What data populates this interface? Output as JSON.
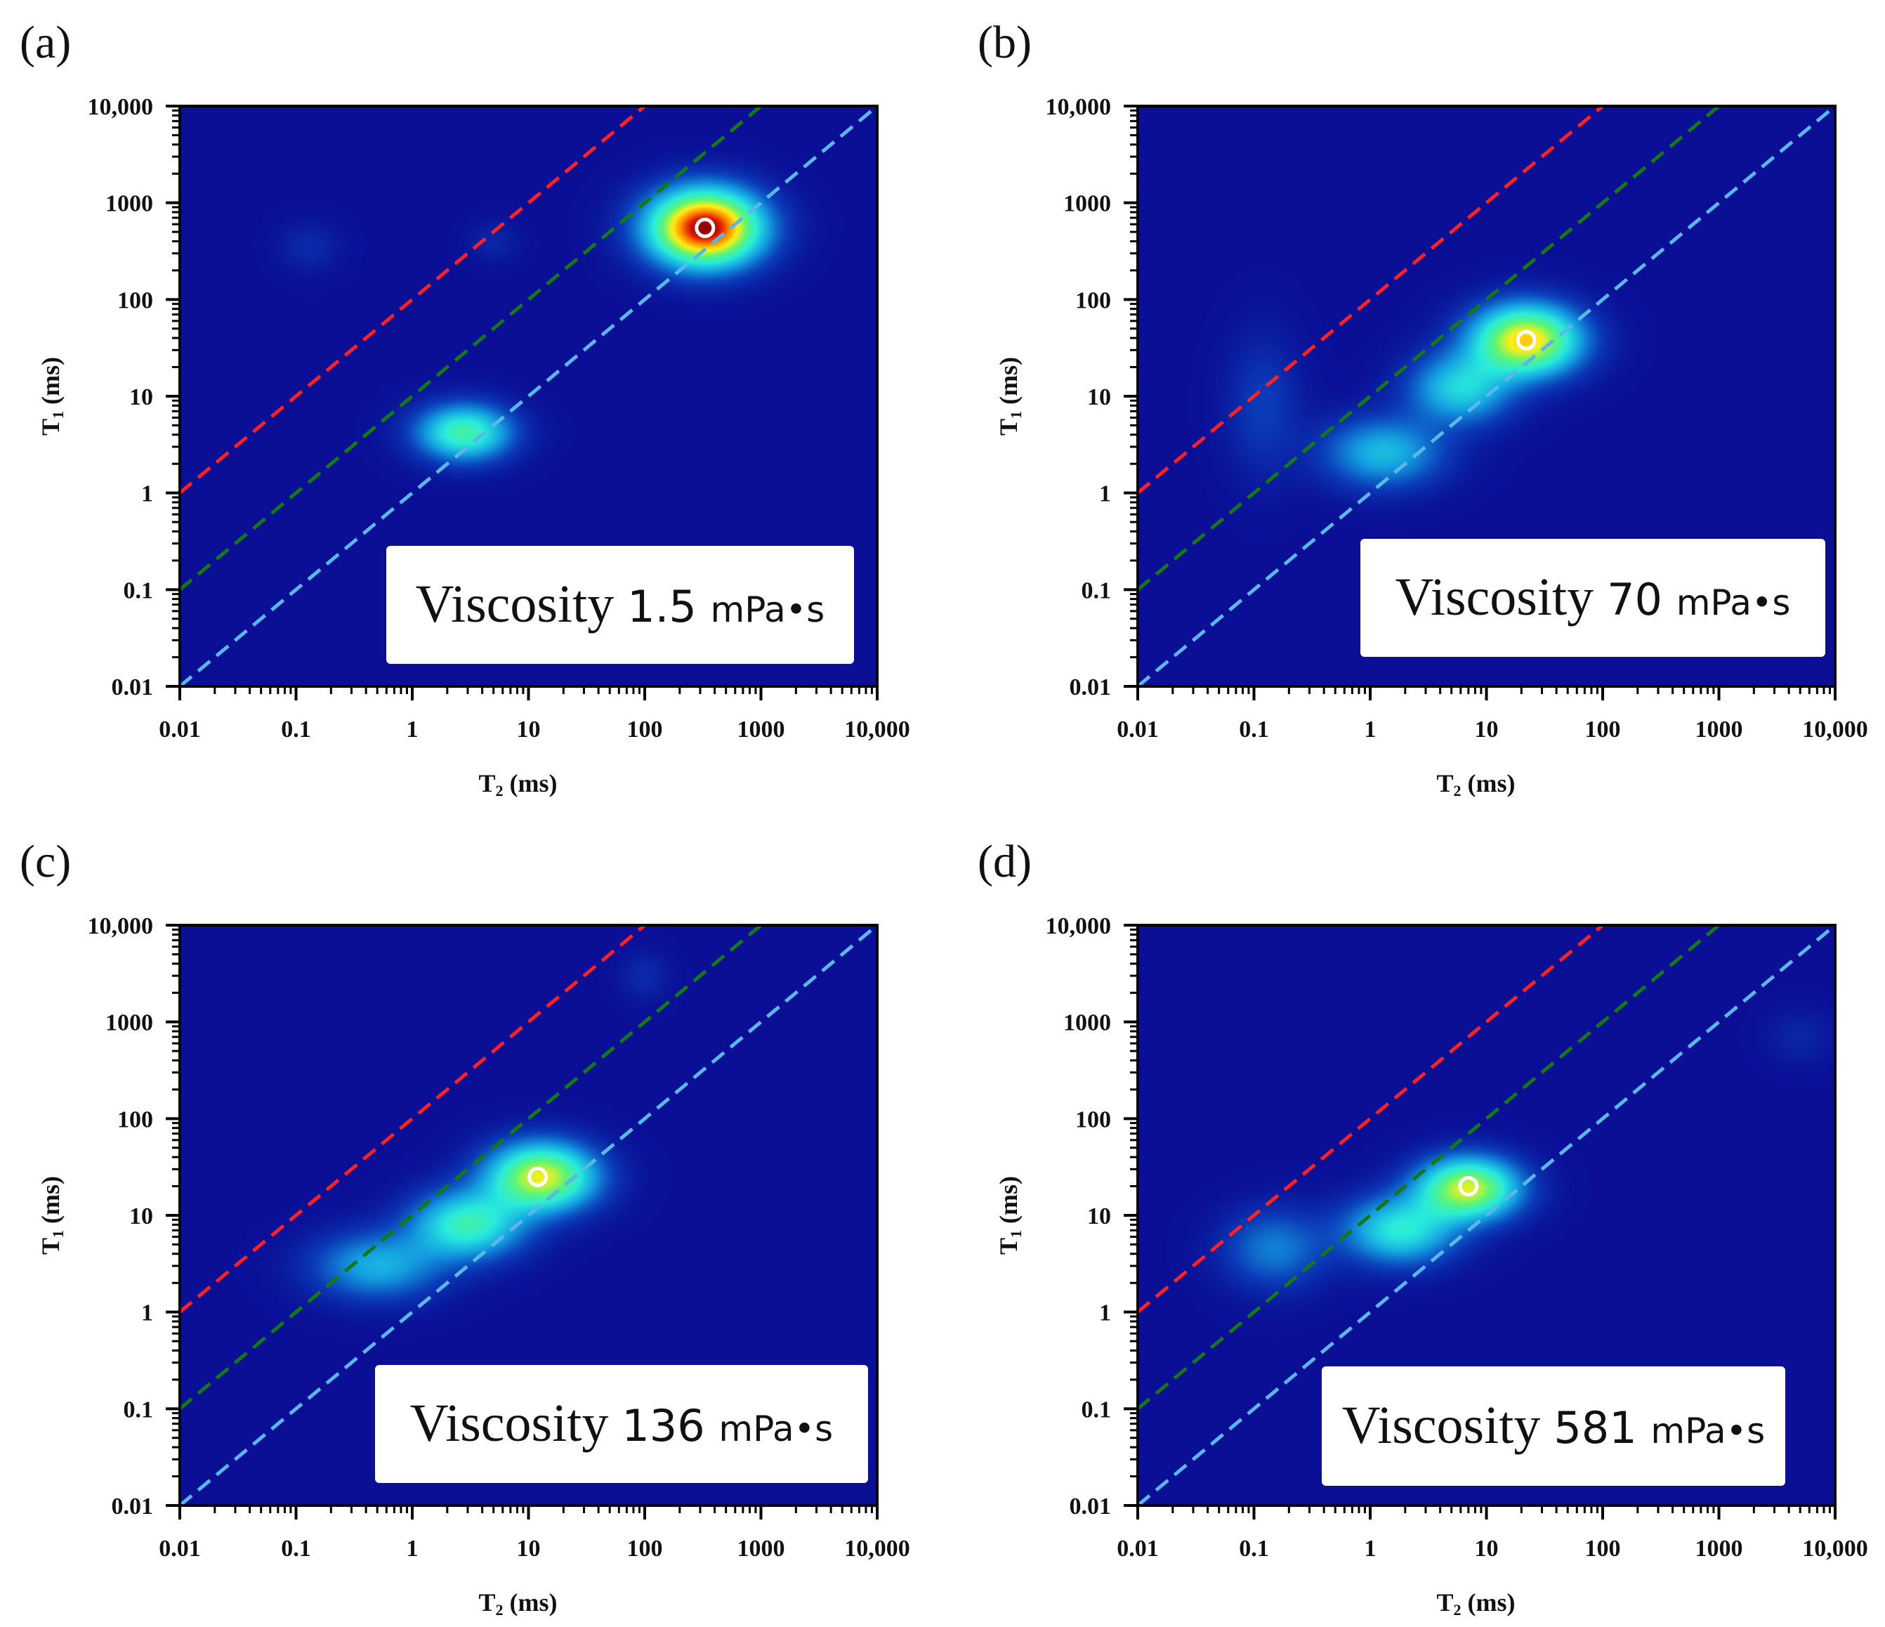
{
  "figure": {
    "colors": {
      "background": "#0a0f96",
      "red_line": "#ff2020",
      "green_line": "#137a13",
      "cyan_line": "#5ab8e8",
      "marker": "#ffffff",
      "label_box": "#ffffff"
    }
  },
  "chart_data": [
    {
      "type": "heatmap",
      "panel_label": "(a)",
      "xlabel": {
        "main": "T",
        "sub": "2",
        "unit": "(ms)"
      },
      "ylabel": {
        "main": "T",
        "sub": "1",
        "unit": "(ms)"
      },
      "x_scale": "log",
      "y_scale": "log",
      "xlim": [
        0.01,
        10000
      ],
      "ylim": [
        0.01,
        10000
      ],
      "x_tick_labels": [
        "0.01",
        "0.1",
        "1",
        "10",
        "100",
        "1000",
        "10,000"
      ],
      "y_tick_labels": [
        "0.01",
        "0.1",
        "1",
        "10",
        "100",
        "1000",
        "10,000"
      ],
      "reference_lines": [
        {
          "color": "red",
          "t1_over_t2": 100
        },
        {
          "color": "green",
          "t1_over_t2": 10
        },
        {
          "color": "cyan",
          "t1_over_t2": 1
        }
      ],
      "peaks": [
        {
          "t2": 330,
          "t1": 550,
          "intensity": 1.0,
          "spread_x": 0.33,
          "spread_y": 0.27
        },
        {
          "t2": 2.8,
          "t1": 4.2,
          "intensity": 0.48,
          "spread_x": 0.28,
          "spread_y": 0.2
        },
        {
          "t2": 0.13,
          "t1": 350,
          "intensity": 0.06,
          "spread_x": 0.18,
          "spread_y": 0.18
        },
        {
          "t2": 5.0,
          "t1": 400,
          "intensity": 0.05,
          "spread_x": 0.15,
          "spread_y": 0.15
        }
      ],
      "marker": {
        "t2": 330,
        "t1": 550
      },
      "annotation": {
        "word": "Viscosity",
        "value": "1.5",
        "unit": "mPa•s"
      }
    },
    {
      "type": "heatmap",
      "panel_label": "(b)",
      "xlabel": {
        "main": "T",
        "sub": "2",
        "unit": "(ms)"
      },
      "ylabel": {
        "main": "T",
        "sub": "1",
        "unit": "(ms)"
      },
      "x_scale": "log",
      "y_scale": "log",
      "xlim": [
        0.01,
        10000
      ],
      "ylim": [
        0.01,
        10000
      ],
      "x_tick_labels": [
        "0.01",
        "0.1",
        "1",
        "10",
        "100",
        "1000",
        "10,000"
      ],
      "y_tick_labels": [
        "0.01",
        "0.1",
        "1",
        "10",
        "100",
        "1000",
        "10,000"
      ],
      "reference_lines": [
        {
          "color": "red",
          "t1_over_t2": 100
        },
        {
          "color": "green",
          "t1_over_t2": 10
        },
        {
          "color": "cyan",
          "t1_over_t2": 1
        }
      ],
      "peaks": [
        {
          "t2": 22,
          "t1": 38,
          "intensity": 0.74,
          "spread_x": 0.32,
          "spread_y": 0.25
        },
        {
          "t2": 6,
          "t1": 12,
          "intensity": 0.35,
          "spread_x": 0.3,
          "spread_y": 0.25
        },
        {
          "t2": 1.3,
          "t1": 2.6,
          "intensity": 0.3,
          "spread_x": 0.35,
          "spread_y": 0.25
        },
        {
          "t2": 0.12,
          "t1": 8,
          "intensity": 0.1,
          "spread_x": 0.22,
          "spread_y": 0.5
        }
      ],
      "marker": {
        "t2": 22,
        "t1": 38
      },
      "annotation": {
        "word": "Viscosity",
        "value": "70",
        "unit": "mPa•s"
      }
    },
    {
      "type": "heatmap",
      "panel_label": "(c)",
      "xlabel": {
        "main": "T",
        "sub": "2",
        "unit": "(ms)"
      },
      "ylabel": {
        "main": "T",
        "sub": "1",
        "unit": "(ms)"
      },
      "x_scale": "log",
      "y_scale": "log",
      "xlim": [
        0.01,
        10000
      ],
      "ylim": [
        0.01,
        10000
      ],
      "x_tick_labels": [
        "0.01",
        "0.1",
        "1",
        "10",
        "100",
        "1000",
        "10,000"
      ],
      "y_tick_labels": [
        "0.01",
        "0.1",
        "1",
        "10",
        "100",
        "1000",
        "10,000"
      ],
      "reference_lines": [
        {
          "color": "red",
          "t1_over_t2": 100
        },
        {
          "color": "green",
          "t1_over_t2": 10
        },
        {
          "color": "cyan",
          "t1_over_t2": 1
        }
      ],
      "peaks": [
        {
          "t2": 13,
          "t1": 25,
          "intensity": 0.68,
          "spread_x": 0.32,
          "spread_y": 0.24
        },
        {
          "t2": 3,
          "t1": 8,
          "intensity": 0.45,
          "spread_x": 0.33,
          "spread_y": 0.24
        },
        {
          "t2": 0.5,
          "t1": 3,
          "intensity": 0.28,
          "spread_x": 0.38,
          "spread_y": 0.24
        },
        {
          "t2": 100,
          "t1": 3000,
          "intensity": 0.06,
          "spread_x": 0.15,
          "spread_y": 0.18
        }
      ],
      "marker": {
        "t2": 12,
        "t1": 25
      },
      "annotation": {
        "word": "Viscosity",
        "value": "136",
        "unit": "mPa•s"
      }
    },
    {
      "type": "heatmap",
      "panel_label": "(d)",
      "xlabel": {
        "main": "T",
        "sub": "2",
        "unit": "(ms)"
      },
      "ylabel": {
        "main": "T",
        "sub": "1",
        "unit": "(ms)"
      },
      "x_scale": "log",
      "y_scale": "log",
      "xlim": [
        0.01,
        10000
      ],
      "ylim": [
        0.01,
        10000
      ],
      "x_tick_labels": [
        "0.01",
        "0.1",
        "1",
        "10",
        "100",
        "1000",
        "10,000"
      ],
      "y_tick_labels": [
        "0.01",
        "0.1",
        "1",
        "10",
        "100",
        "1000",
        "10,000"
      ],
      "reference_lines": [
        {
          "color": "red",
          "t1_over_t2": 100
        },
        {
          "color": "green",
          "t1_over_t2": 10
        },
        {
          "color": "cyan",
          "t1_over_t2": 1
        }
      ],
      "peaks": [
        {
          "t2": 7,
          "t1": 19,
          "intensity": 0.66,
          "spread_x": 0.3,
          "spread_y": 0.22
        },
        {
          "t2": 1.8,
          "t1": 7,
          "intensity": 0.4,
          "spread_x": 0.33,
          "spread_y": 0.24
        },
        {
          "t2": 0.15,
          "t1": 4.5,
          "intensity": 0.2,
          "spread_x": 0.3,
          "spread_y": 0.28
        },
        {
          "t2": 5000,
          "t1": 700,
          "intensity": 0.05,
          "spread_x": 0.2,
          "spread_y": 0.2
        }
      ],
      "marker": {
        "t2": 7,
        "t1": 20
      },
      "annotation": {
        "word": "Viscosity",
        "value": "581",
        "unit": "mPa•s"
      }
    }
  ]
}
